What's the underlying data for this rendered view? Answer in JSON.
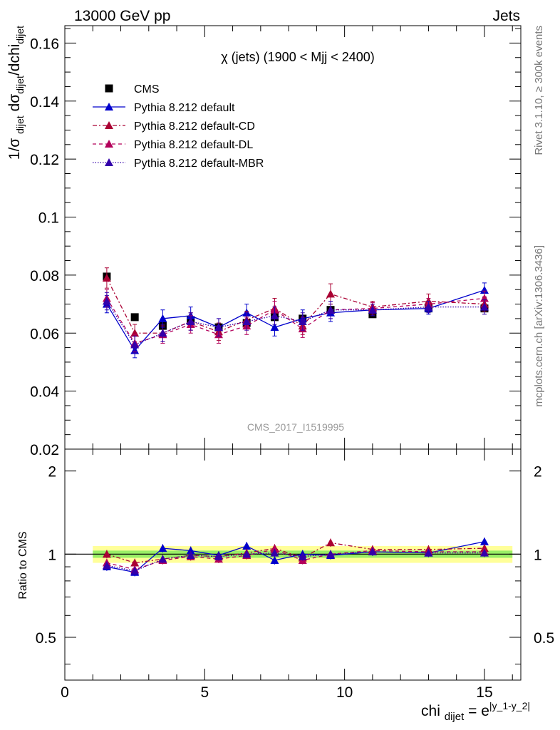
{
  "header": {
    "left": "13000 GeV pp",
    "right": "Jets"
  },
  "side_labels": {
    "rivet": "Rivet 3.1.10, ≥ 300k events",
    "mcplots": "mcplots.cern.ch [arXiv:1306.3436]"
  },
  "watermark": "CMS_2017_I1519995",
  "colors": {
    "cms": "#000000",
    "default": "#0000cc",
    "cd": "#aa0033",
    "dl": "#b3005a",
    "mbr": "#3300aa",
    "band_outer": "#ffff99",
    "band_inner": "#99ee66"
  },
  "chart_data": [
    {
      "type": "scatter",
      "title": "χ (jets) (1900 < Mjj < 2400)",
      "xlabel": "chi_dijet = e^|y_1-y_2|",
      "ylabel": "1/σ_dijet dσ_dijet/dchi_dijet",
      "xlim": [
        0,
        16.3
      ],
      "ylim": [
        0.02,
        0.166
      ],
      "x_ticks": [
        "0",
        "5",
        "10",
        "15"
      ],
      "y_ticks": [
        "0.02",
        "0.04",
        "0.06",
        "0.08",
        "0.1",
        "0.12",
        "0.14",
        "0.16"
      ],
      "legend_position": "top-left",
      "x": [
        1.5,
        2.5,
        3.5,
        4.5,
        5.5,
        6.5,
        7.5,
        8.5,
        9.5,
        11,
        13,
        15
      ],
      "series": [
        {
          "name": "CMS",
          "style": "square-marker",
          "values": [
            0.0795,
            0.0655,
            0.0625,
            0.0645,
            0.062,
            0.0635,
            0.0655,
            0.065,
            0.068,
            0.0665,
            0.0685,
            0.0685
          ],
          "errors": [
            0.001,
            0.0008,
            0.0008,
            0.0008,
            0.0008,
            0.0008,
            0.0008,
            0.0008,
            0.0008,
            0.0007,
            0.0007,
            0.0007
          ]
        },
        {
          "name": "Pythia 8.212 default",
          "style": "solid",
          "values": [
            0.07,
            0.054,
            0.065,
            0.066,
            0.062,
            0.067,
            0.062,
            0.065,
            0.067,
            0.068,
            0.0685,
            0.0748
          ],
          "errors": [
            0.003,
            0.0025,
            0.003,
            0.003,
            0.003,
            0.003,
            0.003,
            0.003,
            0.003,
            0.002,
            0.002,
            0.0025
          ]
        },
        {
          "name": "Pythia 8.212 default-CD",
          "style": "dash-dot",
          "values": [
            0.079,
            0.06,
            0.06,
            0.064,
            0.0605,
            0.0645,
            0.0685,
            0.0625,
            0.0735,
            0.069,
            0.071,
            0.07
          ],
          "errors": [
            0.0035,
            0.003,
            0.003,
            0.003,
            0.003,
            0.003,
            0.0035,
            0.003,
            0.0035,
            0.002,
            0.0025,
            0.0025
          ]
        },
        {
          "name": "Pythia 8.212 default-DL",
          "style": "dashed",
          "values": [
            0.072,
            0.0565,
            0.0595,
            0.063,
            0.0595,
            0.0625,
            0.068,
            0.0615,
            0.068,
            0.0685,
            0.07,
            0.072
          ],
          "errors": [
            0.003,
            0.003,
            0.003,
            0.003,
            0.003,
            0.003,
            0.003,
            0.003,
            0.003,
            0.002,
            0.002,
            0.0025
          ]
        },
        {
          "name": "Pythia 8.212 default-MBR",
          "style": "dotted",
          "values": [
            0.071,
            0.056,
            0.06,
            0.064,
            0.062,
            0.064,
            0.066,
            0.064,
            0.068,
            0.068,
            0.069,
            0.069
          ],
          "errors": [
            0.003,
            0.003,
            0.003,
            0.003,
            0.003,
            0.003,
            0.003,
            0.003,
            0.003,
            0.002,
            0.002,
            0.0025
          ]
        }
      ]
    },
    {
      "type": "scatter",
      "ylabel": "Ratio to CMS",
      "xlim": [
        0,
        16.3
      ],
      "ylim": [
        0.35,
        2.4
      ],
      "y_scale": "log",
      "y_ticks": [
        "0.5",
        "1",
        "2"
      ],
      "reference": 1,
      "band_inner": [
        0.97,
        1.03
      ],
      "band_outer": [
        0.93,
        1.07
      ],
      "band_x": [
        1.0,
        16.0
      ],
      "x": [
        1.5,
        2.5,
        3.5,
        4.5,
        5.5,
        6.5,
        7.5,
        8.5,
        9.5,
        11,
        13,
        15
      ],
      "series": [
        {
          "name": "Pythia 8.212 default",
          "style": "solid",
          "values": [
            0.9,
            0.86,
            1.05,
            1.03,
            0.99,
            1.07,
            0.95,
            1.0,
            0.99,
            1.02,
            1.01,
            1.11
          ]
        },
        {
          "name": "Pythia 8.212 default-CD",
          "style": "dash-dot",
          "values": [
            1.0,
            0.93,
            0.96,
            0.99,
            0.98,
            1.01,
            1.05,
            0.97,
            1.1,
            1.04,
            1.04,
            1.05
          ]
        },
        {
          "name": "Pythia 8.212 default-DL",
          "style": "dashed",
          "values": [
            0.93,
            0.88,
            0.95,
            0.98,
            0.96,
            0.99,
            1.04,
            0.95,
            1.0,
            1.03,
            1.02,
            1.02
          ]
        },
        {
          "name": "Pythia 8.212 default-MBR",
          "style": "dotted",
          "values": [
            0.91,
            0.87,
            0.96,
            0.99,
            0.98,
            1.0,
            1.01,
            0.98,
            1.0,
            1.02,
            1.01,
            1.01
          ]
        }
      ]
    }
  ]
}
